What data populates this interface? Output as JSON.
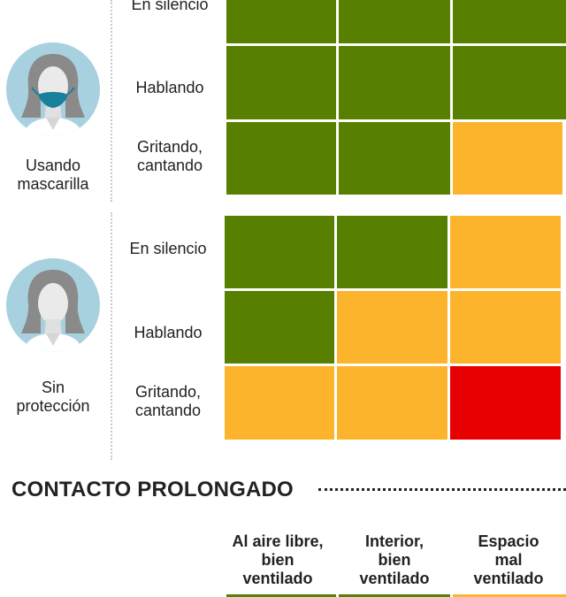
{
  "colors": {
    "low": "#588000",
    "medium": "#fdb42d",
    "high": "#e70000"
  },
  "groups": [
    {
      "label_line1": "Usando",
      "label_line2": "mascarilla",
      "icon": "person-with-mask-icon",
      "rows": [
        {
          "activity_line1": "En silencio",
          "activity_line2": "",
          "levels": [
            "low",
            "low",
            "low"
          ]
        },
        {
          "activity_line1": "Hablando",
          "activity_line2": "",
          "levels": [
            "low",
            "low",
            "low"
          ]
        },
        {
          "activity_line1": "Gritando,",
          "activity_line2": "cantando",
          "levels": [
            "low",
            "low",
            "medium"
          ]
        }
      ]
    },
    {
      "label_line1": "Sin",
      "label_line2": "protección",
      "icon": "person-without-mask-icon",
      "rows": [
        {
          "activity_line1": "En silencio",
          "activity_line2": "",
          "levels": [
            "low",
            "low",
            "medium"
          ]
        },
        {
          "activity_line1": "Hablando",
          "activity_line2": "",
          "levels": [
            "low",
            "medium",
            "medium"
          ]
        },
        {
          "activity_line1": "Gritando,",
          "activity_line2": "cantando",
          "levels": [
            "medium",
            "medium",
            "high"
          ]
        }
      ]
    }
  ],
  "section": {
    "title": "CONTACTO PROLONGADO"
  },
  "columns": [
    {
      "line1": "Al aire libre,",
      "line2": "bien",
      "line3": "ventilado",
      "level": "low"
    },
    {
      "line1": "Interior,",
      "line2": "bien",
      "line3": "ventilado",
      "level": "low"
    },
    {
      "line1": "Espacio",
      "line2": "mal",
      "line3": "ventilado",
      "level": "medium"
    }
  ]
}
